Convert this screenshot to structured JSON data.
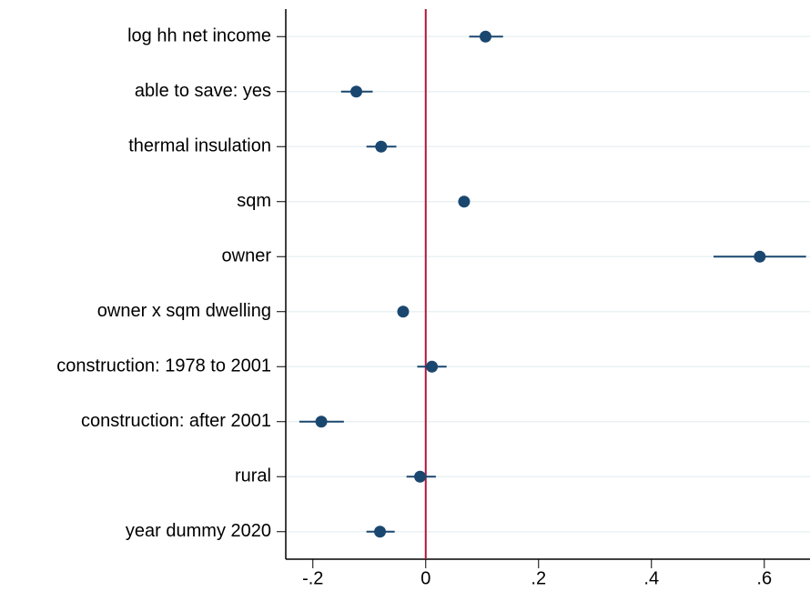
{
  "chart_data": {
    "type": "coefplot",
    "categories": [
      "log hh net income",
      "able to save: yes",
      "thermal insulation",
      "sqm",
      "owner",
      "owner x sqm dwelling",
      "construction: 1978 to 2001",
      "construction: after 2001",
      "rural",
      "year dummy 2020"
    ],
    "values": [
      0.106,
      -0.123,
      -0.079,
      0.068,
      0.592,
      -0.04,
      0.011,
      -0.185,
      -0.01,
      -0.081
    ],
    "ci_low": [
      0.077,
      -0.15,
      -0.105,
      0.065,
      0.51,
      -0.043,
      -0.015,
      -0.224,
      -0.034,
      -0.105
    ],
    "ci_high": [
      0.137,
      -0.094,
      -0.052,
      0.071,
      0.674,
      -0.037,
      0.037,
      -0.145,
      0.018,
      -0.055
    ],
    "color": "#1a476f",
    "reference_line": 0,
    "reference_color": "#b2163c",
    "xlim": [
      -0.248,
      0.681
    ],
    "xticks": [
      {
        "value": -0.2,
        "label": "-.2"
      },
      0,
      {
        "value": 0.2,
        "label": ".2"
      },
      {
        "value": 0.4,
        "label": ".4"
      },
      {
        "value": 0.6,
        "label": ".6"
      }
    ],
    "grid": true
  }
}
